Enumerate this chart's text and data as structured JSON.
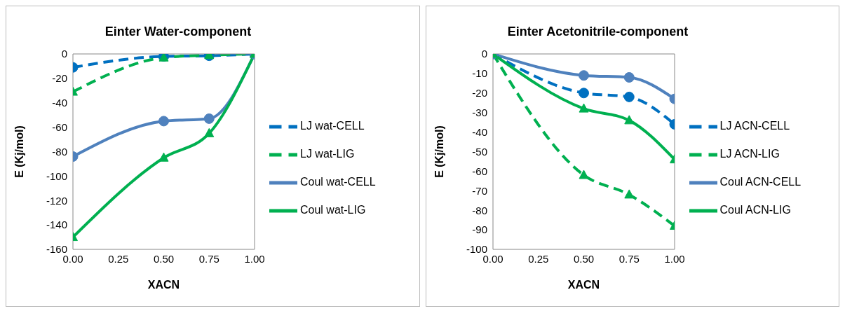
{
  "chart_data": [
    {
      "type": "line",
      "title": "Einter Water-component",
      "xlabel": "XACN",
      "ylabel": "E (Kj/mol)",
      "x": [
        0,
        0.5,
        0.75,
        1
      ],
      "xlim": [
        0,
        1
      ],
      "xticks": [
        {
          "value": 0,
          "label": "0.00"
        },
        {
          "value": 0.25,
          "label": "0.25"
        },
        {
          "value": 0.5,
          "label": "0.50"
        },
        {
          "value": 0.75,
          "label": "0.75"
        },
        {
          "value": 1,
          "label": "1.00"
        }
      ],
      "ylim": [
        -160,
        0
      ],
      "yticks": [
        -160,
        -140,
        -120,
        -100,
        -80,
        -60,
        -40,
        -20,
        0
      ],
      "grid": false,
      "legend": "right",
      "series": [
        {
          "name": "LJ wat-CELL",
          "color": "#0070c0",
          "marker": "circle",
          "line_style": "dashed",
          "values": [
            -11,
            -2,
            -1.5,
            0
          ]
        },
        {
          "name": "LJ wat-LIG",
          "color": "#00b050",
          "marker": "triangle",
          "line_style": "dashed",
          "values": [
            -31,
            -3,
            -1,
            0
          ]
        },
        {
          "name": "Coul wat-CELL",
          "color": "#4f81bd",
          "marker": "circle",
          "line_style": "solid",
          "values": [
            -84,
            -55,
            -53,
            0
          ]
        },
        {
          "name": "Coul wat-LIG",
          "color": "#00b050",
          "marker": "triangle",
          "line_style": "solid",
          "values": [
            -150,
            -85,
            -65,
            0
          ]
        }
      ]
    },
    {
      "type": "line",
      "title": "Einter Acetonitrile-component",
      "xlabel": "XACN",
      "ylabel": "E (Kj/mol)",
      "x": [
        0,
        0.5,
        0.75,
        1
      ],
      "xlim": [
        0,
        1
      ],
      "xticks": [
        {
          "value": 0,
          "label": "0.00"
        },
        {
          "value": 0.25,
          "label": "0.25"
        },
        {
          "value": 0.5,
          "label": "0.50"
        },
        {
          "value": 0.75,
          "label": "0.75"
        },
        {
          "value": 1,
          "label": "1.00"
        }
      ],
      "ylim": [
        -100,
        0
      ],
      "yticks": [
        -100,
        -90,
        -80,
        -70,
        -60,
        -50,
        -40,
        -30,
        -20,
        -10,
        0
      ],
      "grid": false,
      "legend": "right",
      "series": [
        {
          "name": "LJ ACN-CELL",
          "color": "#0070c0",
          "marker": "circle",
          "line_style": "dashed",
          "values": [
            0,
            -20,
            -22,
            -36
          ]
        },
        {
          "name": "LJ ACN-LIG",
          "color": "#00b050",
          "marker": "triangle",
          "line_style": "dashed",
          "values": [
            0,
            -62,
            -72,
            -88
          ]
        },
        {
          "name": "Coul ACN-CELL",
          "color": "#4f81bd",
          "marker": "circle",
          "line_style": "solid",
          "values": [
            0,
            -11,
            -12,
            -23
          ]
        },
        {
          "name": "Coul ACN-LIG",
          "color": "#00b050",
          "marker": "triangle",
          "line_style": "solid",
          "values": [
            0,
            -28,
            -34,
            -54
          ]
        }
      ]
    }
  ]
}
